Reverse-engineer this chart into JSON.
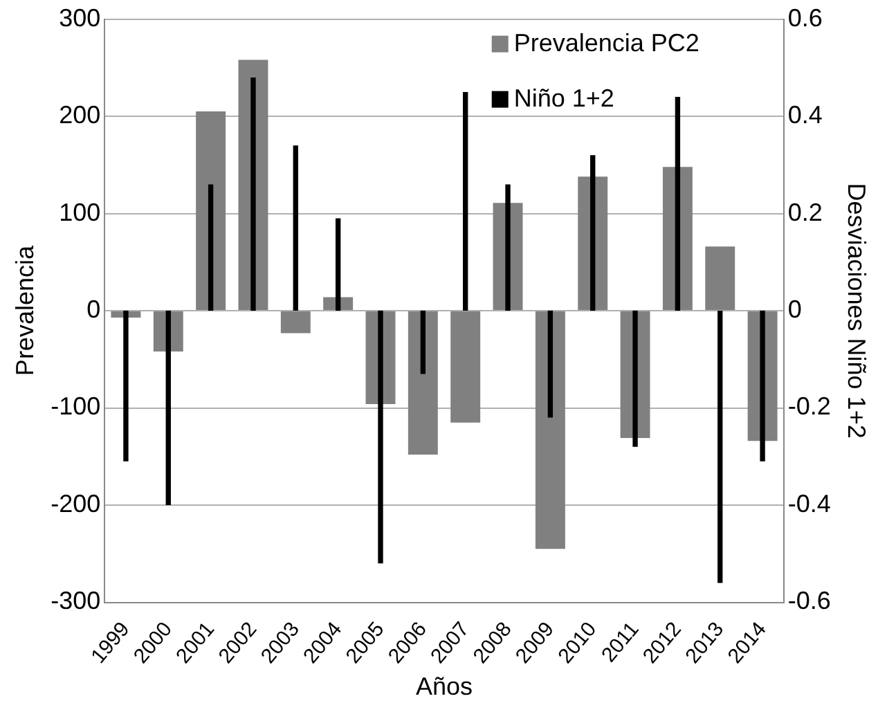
{
  "chart_data": {
    "type": "bar",
    "xlabel": "Años",
    "ylabel": "Prevalencia",
    "y2label": "Desviaciones Niño 1+2",
    "categories": [
      "1999",
      "2000",
      "2001",
      "2002",
      "2003",
      "2004",
      "2005",
      "2006",
      "2007",
      "2008",
      "2009",
      "2010",
      "2011",
      "2012",
      "2013",
      "2014"
    ],
    "series": [
      {
        "name": "Prevalencia PC2",
        "color": "#808080",
        "values": [
          -7,
          -42,
          205,
          258,
          -23,
          14,
          -96,
          -148,
          -115,
          111,
          -245,
          138,
          -131,
          148,
          66,
          -134
        ]
      },
      {
        "name": "Niño 1+2",
        "color": "#000000",
        "axis": "y2",
        "values": [
          -0.31,
          -0.4,
          0.26,
          0.48,
          0.34,
          0.19,
          -0.52,
          -0.13,
          0.45,
          0.26,
          -0.22,
          0.32,
          -0.28,
          0.44,
          -0.56,
          -0.31
        ]
      }
    ],
    "ylim": [
      -300,
      300
    ],
    "yticks": [
      -300,
      -200,
      -100,
      0,
      100,
      200,
      300
    ],
    "y2lim": [
      -0.6,
      0.6
    ],
    "y2ticks": [
      -0.6,
      -0.4,
      -0.2,
      0,
      0.2,
      0.4,
      0.6
    ],
    "grid": "y",
    "legend": "top right"
  }
}
